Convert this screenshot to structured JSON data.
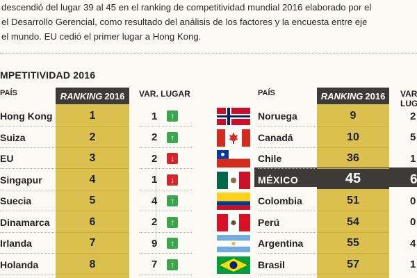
{
  "intro": {
    "line1": "descendió del lugar 39 al 45 en el ranking de competitividad mundial 2016 elaborado por el",
    "line2": "el Desarrollo Gerencial, como resultado del análisis de los factores y la encuesta entre eje",
    "line3": "el mundo. EU cedió el primer lugar a Hong Kong."
  },
  "section_title": "MPETITIVIDAD 2016",
  "headers": {
    "pais": "PAÍS",
    "ranking_italic": "RANKING",
    "ranking_year": "2016",
    "var_lugar": "VAR. LUGAR"
  },
  "left_rows": [
    {
      "country": "Hong Kong",
      "rank": "1",
      "var": "1",
      "dir": "up"
    },
    {
      "country": "Suiza",
      "rank": "2",
      "var": "2",
      "dir": "up"
    },
    {
      "country": "EU",
      "rank": "3",
      "var": "2",
      "dir": "down"
    },
    {
      "country": "Singapur",
      "rank": "4",
      "var": "1",
      "dir": "down"
    },
    {
      "country": "Suecia",
      "rank": "5",
      "var": "4",
      "dir": "up"
    },
    {
      "country": "Dinamarca",
      "rank": "6",
      "var": "2",
      "dir": "up"
    },
    {
      "country": "Irlanda",
      "rank": "7",
      "var": "9",
      "dir": "up"
    },
    {
      "country": "Holanda",
      "rank": "8",
      "var": "7",
      "dir": "up"
    }
  ],
  "right_rows": [
    {
      "country": "Noruega",
      "rank": "9",
      "var": "2",
      "flag": "norway-flag-icon"
    },
    {
      "country": "Canadá",
      "rank": "10",
      "var": "5",
      "flag": "canada-flag-icon"
    },
    {
      "country": "Chile",
      "rank": "36",
      "var": "1",
      "flag": "chile-flag-icon"
    },
    {
      "country": "MÉXICO",
      "rank": "45",
      "var": "6",
      "flag": "mexico-flag-icon"
    },
    {
      "country": "Colombia",
      "rank": "51",
      "var": "0",
      "flag": "colombia-flag-icon"
    },
    {
      "country": "Perú",
      "rank": "54",
      "var": "0",
      "flag": "peru-flag-icon"
    },
    {
      "country": "Argentina",
      "rank": "55",
      "var": "4",
      "flag": "argentina-flag-icon"
    },
    {
      "country": "Brasil",
      "rank": "57",
      "var": "1",
      "flag": "brazil-flag-icon"
    }
  ],
  "colors": {
    "gold": "#d9c04f",
    "dark": "#3d3a38",
    "up": "#3aa84a",
    "down": "#d6262d"
  }
}
